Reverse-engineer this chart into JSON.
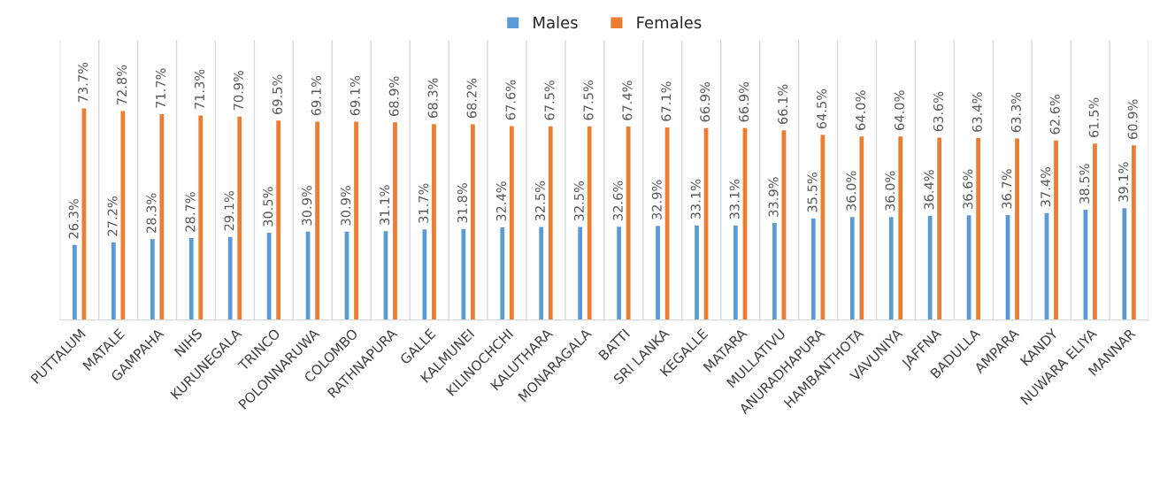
{
  "chart_data": {
    "type": "bar",
    "categories": [
      "PUTTALUM",
      "MATALE",
      "GAMPAHA",
      "NIHS",
      "KURUNEGALA",
      "TRINCO",
      "POLONNARUWA",
      "COLOMBO",
      "RATHNAPURA",
      "GALLE",
      "KALMUNEI",
      "KILINOCHCHI",
      "KALUTHARA",
      "MONARAGALA",
      "BATTI",
      "SRI LANKA",
      "KEGALLE",
      "MATARA",
      "MULLATIVU",
      "ANURADHAPURA",
      "HAMBANTHOTA",
      "VAVUNIYA",
      "JAFFNA",
      "BADULLA",
      "AMPARA",
      "KANDY",
      "NUWARA ELIYA",
      "MANNAR"
    ],
    "series": [
      {
        "name": "Males",
        "color": "#5b9bd5",
        "values": [
          26.3,
          27.2,
          28.3,
          28.7,
          29.1,
          30.5,
          30.9,
          30.9,
          31.1,
          31.7,
          31.8,
          32.4,
          32.5,
          32.5,
          32.6,
          32.9,
          33.1,
          33.1,
          33.9,
          35.5,
          36.0,
          36.0,
          36.4,
          36.6,
          36.7,
          37.4,
          38.5,
          39.1
        ],
        "value_labels": [
          "26.3%",
          "27.2%",
          "28.3%",
          "28.7%",
          "29.1%",
          "30.5%",
          "30.9%",
          "30.9%",
          "31.1%",
          "31.7%",
          "31.8%",
          "32.4%",
          "32.5%",
          "32.5%",
          "32.6%",
          "32.9%",
          "33.1%",
          "33.1%",
          "33.9%",
          "35.5%",
          "36.0%",
          "36.0%",
          "36.4%",
          "36.6%",
          "36.7%",
          "37.4%",
          "38.5%",
          "39.1%"
        ]
      },
      {
        "name": "Females",
        "color": "#ed7d31",
        "values": [
          73.7,
          72.8,
          71.7,
          71.3,
          70.9,
          69.5,
          69.1,
          69.1,
          68.9,
          68.3,
          68.2,
          67.6,
          67.5,
          67.5,
          67.4,
          67.1,
          66.9,
          66.9,
          66.1,
          64.5,
          64.0,
          64.0,
          63.6,
          63.4,
          63.3,
          62.6,
          61.5,
          60.9
        ],
        "value_labels": [
          "73.7%",
          "72.8%",
          "71.7%",
          "71.3%",
          "70.9%",
          "69.5%",
          "69.1%",
          "69.1%",
          "68.9%",
          "68.3%",
          "68.2%",
          "67.6%",
          "67.5%",
          "67.5%",
          "67.4%",
          "67.1%",
          "66.9%",
          "66.9%",
          "66.1%",
          "64.5%",
          "64.0%",
          "64.0%",
          "63.6%",
          "63.4%",
          "63.3%",
          "62.6%",
          "61.5%",
          "60.9%"
        ]
      }
    ],
    "grid": "x",
    "legend": "top",
    "tick_labels": "x"
  }
}
